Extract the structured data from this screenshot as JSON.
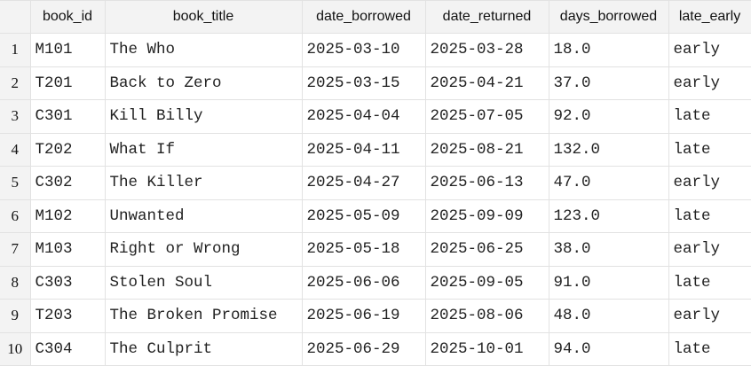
{
  "columns": [
    "book_id",
    "book_title",
    "date_borrowed",
    "date_returned",
    "days_borrowed",
    "late_early"
  ],
  "rows": [
    {
      "n": "1",
      "book_id": "M101",
      "book_title": "The Who",
      "date_borrowed": "2025-03-10",
      "date_returned": "2025-03-28",
      "days_borrowed": "18.0",
      "late_early": "early"
    },
    {
      "n": "2",
      "book_id": "T201",
      "book_title": "Back to Zero",
      "date_borrowed": "2025-03-15",
      "date_returned": "2025-04-21",
      "days_borrowed": "37.0",
      "late_early": "early"
    },
    {
      "n": "3",
      "book_id": "C301",
      "book_title": "Kill Billy",
      "date_borrowed": "2025-04-04",
      "date_returned": "2025-07-05",
      "days_borrowed": "92.0",
      "late_early": "late"
    },
    {
      "n": "4",
      "book_id": "T202",
      "book_title": "What If",
      "date_borrowed": "2025-04-11",
      "date_returned": "2025-08-21",
      "days_borrowed": "132.0",
      "late_early": "late"
    },
    {
      "n": "5",
      "book_id": "C302",
      "book_title": "The Killer",
      "date_borrowed": "2025-04-27",
      "date_returned": "2025-06-13",
      "days_borrowed": "47.0",
      "late_early": "early"
    },
    {
      "n": "6",
      "book_id": "M102",
      "book_title": "Unwanted",
      "date_borrowed": "2025-05-09",
      "date_returned": "2025-09-09",
      "days_borrowed": "123.0",
      "late_early": "late"
    },
    {
      "n": "7",
      "book_id": "M103",
      "book_title": "Right or Wrong",
      "date_borrowed": "2025-05-18",
      "date_returned": "2025-06-25",
      "days_borrowed": "38.0",
      "late_early": "early"
    },
    {
      "n": "8",
      "book_id": "C303",
      "book_title": "Stolen Soul",
      "date_borrowed": "2025-06-06",
      "date_returned": "2025-09-05",
      "days_borrowed": "91.0",
      "late_early": "late"
    },
    {
      "n": "9",
      "book_id": "T203",
      "book_title": "The Broken Promise",
      "date_borrowed": "2025-06-19",
      "date_returned": "2025-08-06",
      "days_borrowed": "48.0",
      "late_early": "early"
    },
    {
      "n": "10",
      "book_id": "C304",
      "book_title": "The Culprit",
      "date_borrowed": "2025-06-29",
      "date_returned": "2025-10-01",
      "days_borrowed": "94.0",
      "late_early": "late"
    }
  ]
}
